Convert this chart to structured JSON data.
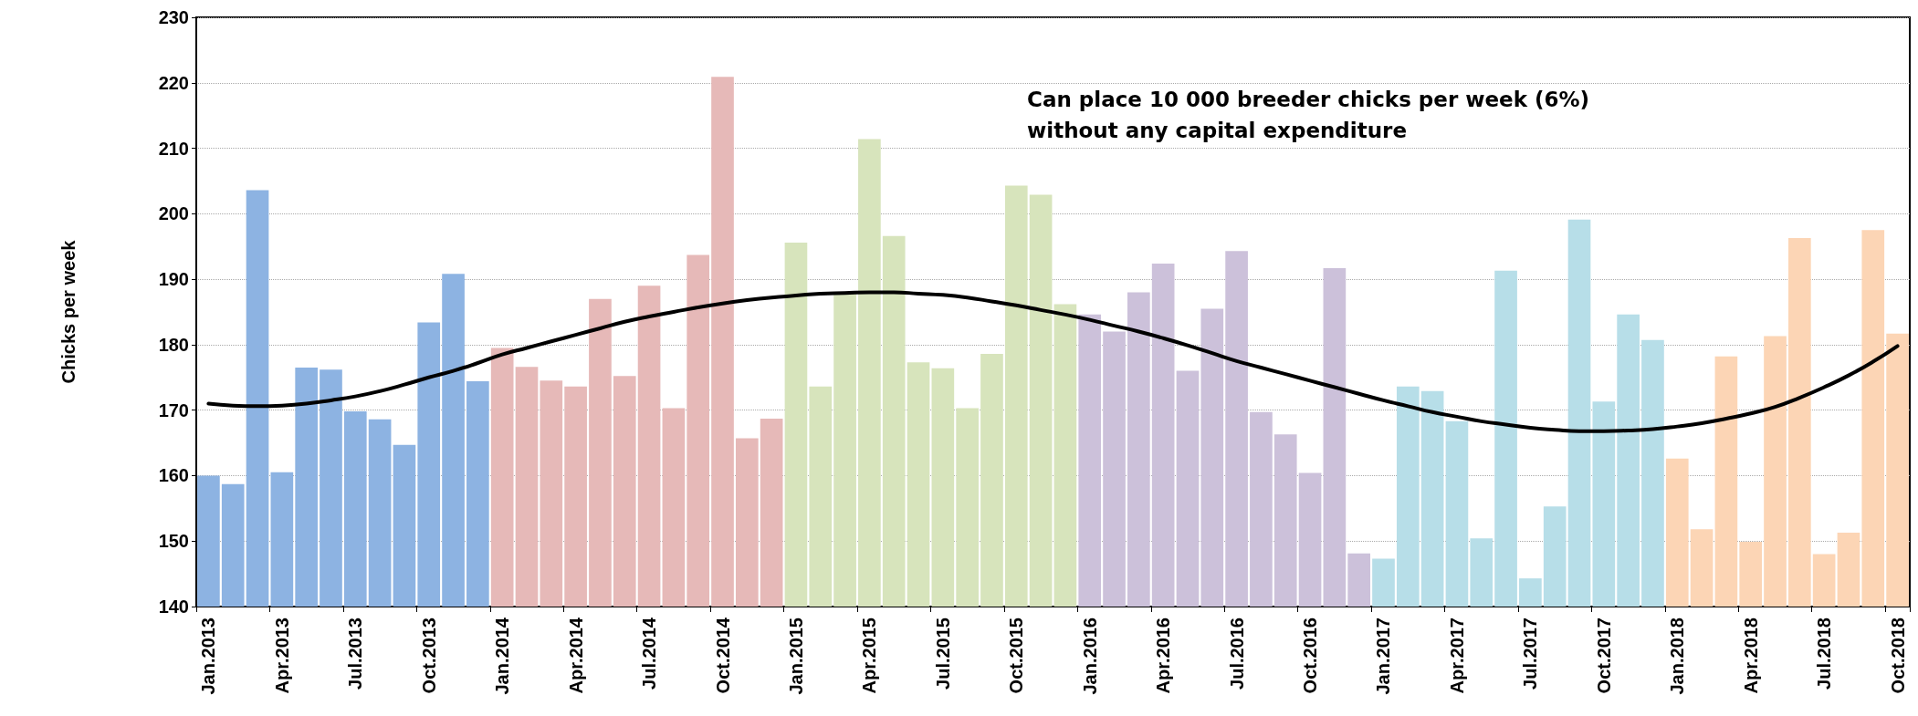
{
  "chart_data": {
    "type": "bar",
    "ylabel": "Chicks per week",
    "annotations": [
      "Can place 10 000 breeder chicks per week (6%)\nwithout any capital expenditure"
    ],
    "categories": [
      "Jan.2013",
      null,
      null,
      "Apr.2013",
      null,
      null,
      "Jul.2013",
      null,
      null,
      "Oct.2013",
      null,
      null,
      "Jan.2014",
      null,
      null,
      "Apr.2014",
      null,
      null,
      "Jul.2014",
      null,
      null,
      "Oct.2014",
      null,
      null,
      "Jan.2015",
      null,
      null,
      "Apr.2015",
      null,
      null,
      "Jul.2015",
      null,
      null,
      "Oct.2015",
      null,
      null,
      "Jan.2016",
      null,
      null,
      "Apr.2016",
      null,
      null,
      "Jul.2016",
      null,
      null,
      "Oct.2016",
      null,
      null,
      "Jan.2017",
      null,
      null,
      "Apr.2017",
      null,
      null,
      "Jul.2017",
      null,
      null,
      "Oct.2017",
      null,
      null,
      "Jan.2018",
      null,
      null,
      "Apr.2018",
      null,
      null,
      "Jul.2018",
      null,
      null,
      "Oct.2018"
    ],
    "series": [
      {
        "values": [
          160.0,
          158.7,
          203.6,
          160.5,
          176.5,
          176.2,
          169.8,
          168.6,
          164.7,
          183.4,
          190.8,
          174.4,
          179.5,
          176.6,
          174.5,
          173.6,
          187.0,
          175.2,
          189.0,
          170.3,
          193.7,
          220.9,
          165.7,
          168.7,
          195.6,
          173.6,
          188.0,
          211.4,
          196.6,
          177.3,
          176.4,
          170.3,
          178.6,
          204.3,
          202.9,
          186.2,
          184.6,
          182.0,
          188.0,
          192.4,
          176.0,
          185.5,
          194.3,
          169.7,
          166.3,
          160.4,
          191.7,
          148.1,
          147.3,
          173.6,
          172.9,
          168.3,
          150.4,
          191.3,
          144.3,
          155.3,
          199.1,
          171.3,
          184.6,
          180.7,
          162.6,
          151.8,
          178.2,
          149.9,
          181.3,
          196.3,
          148.0,
          151.3,
          197.5,
          181.7
        ],
        "colors": [
          "#8db3e2",
          "#8db3e2",
          "#8db3e2",
          "#8db3e2",
          "#8db3e2",
          "#8db3e2",
          "#8db3e2",
          "#8db3e2",
          "#8db3e2",
          "#8db3e2",
          "#8db3e2",
          "#8db3e2",
          "#e6b9b8",
          "#e6b9b8",
          "#e6b9b8",
          "#e6b9b8",
          "#e6b9b8",
          "#e6b9b8",
          "#e6b9b8",
          "#e6b9b8",
          "#e6b9b8",
          "#e6b9b8",
          "#e6b9b8",
          "#e6b9b8",
          "#d7e4bc",
          "#d7e4bc",
          "#d7e4bc",
          "#d7e4bc",
          "#d7e4bc",
          "#d7e4bc",
          "#d7e4bc",
          "#d7e4bc",
          "#d7e4bc",
          "#d7e4bc",
          "#d7e4bc",
          "#d7e4bc",
          "#ccc1da",
          "#ccc1da",
          "#ccc1da",
          "#ccc1da",
          "#ccc1da",
          "#ccc1da",
          "#ccc1da",
          "#ccc1da",
          "#ccc1da",
          "#ccc1da",
          "#ccc1da",
          "#ccc1da",
          "#b7dee8",
          "#b7dee8",
          "#b7dee8",
          "#b7dee8",
          "#b7dee8",
          "#b7dee8",
          "#b7dee8",
          "#b7dee8",
          "#b7dee8",
          "#b7dee8",
          "#b7dee8",
          "#b7dee8",
          "#fcd5b5",
          "#fcd5b5",
          "#fcd5b5",
          "#fcd5b5",
          "#fcd5b5",
          "#fcd5b5",
          "#fcd5b5",
          "#fcd5b5",
          "#fcd5b5",
          "#fcd5b5"
        ]
      },
      {
        "type": "line",
        "color": "#000000",
        "marker": "none",
        "line_style": "solid",
        "values": [
          171.0,
          170.7,
          170.6,
          170.7,
          171.0,
          171.5,
          172.1,
          172.9,
          173.9,
          175.0,
          176.0,
          177.2,
          178.5,
          179.5,
          180.5,
          181.5,
          182.5,
          183.5,
          184.3,
          185.0,
          185.7,
          186.3,
          186.8,
          187.2,
          187.5,
          187.8,
          187.9,
          188.0,
          188.0,
          187.8,
          187.6,
          187.2,
          186.6,
          186.0,
          185.3,
          184.6,
          183.8,
          182.9,
          182.0,
          181.0,
          179.9,
          178.7,
          177.5,
          176.5,
          175.5,
          174.5,
          173.5,
          172.5,
          171.5,
          170.6,
          169.7,
          169.0,
          168.3,
          167.8,
          167.3,
          167.0,
          166.8,
          166.8,
          166.9,
          167.1,
          167.5,
          168.0,
          168.7,
          169.5,
          170.5,
          171.9,
          173.5,
          175.3,
          177.4,
          179.8
        ]
      }
    ],
    "ylim": [
      140,
      230
    ],
    "yticks": [
      140,
      150,
      160,
      170,
      180,
      190,
      200,
      210,
      220,
      230
    ],
    "grid": "y"
  }
}
